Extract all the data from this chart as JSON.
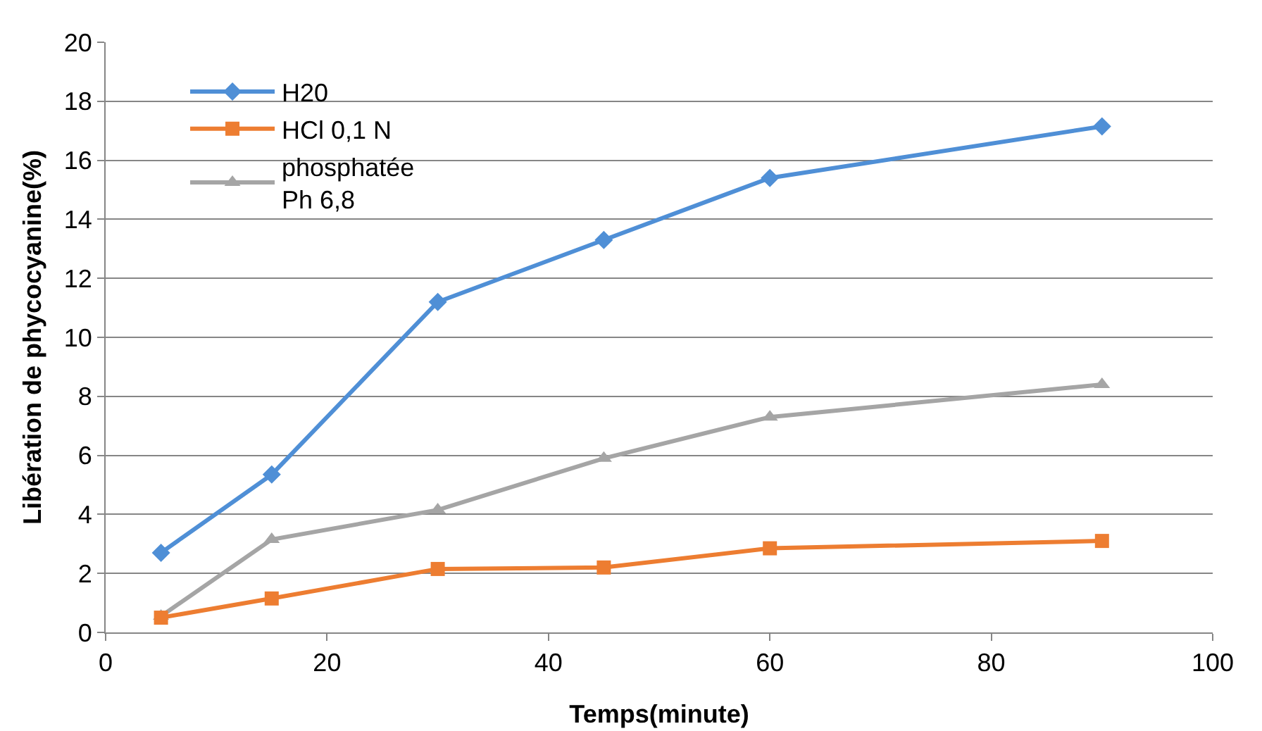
{
  "chart_data": {
    "type": "line",
    "xlabel": "Temps(minute)",
    "ylabel": "Libération de phycocyanine(%)",
    "x": [
      5,
      15,
      30,
      45,
      60,
      90
    ],
    "series": [
      {
        "name": "H20",
        "color": "#4f8fd6",
        "marker": "diamond",
        "values": [
          2.7,
          5.35,
          11.2,
          13.3,
          15.4,
          17.15
        ]
      },
      {
        "name": "HCl 0,1 N",
        "color": "#ed7d31",
        "marker": "square",
        "values": [
          0.5,
          1.15,
          2.15,
          2.2,
          2.85,
          3.1
        ]
      },
      {
        "name": "phosphatée\nPh 6,8",
        "color": "#a5a5a5",
        "marker": "triangle",
        "values": [
          0.55,
          3.15,
          4.15,
          5.9,
          7.3,
          8.4
        ]
      }
    ],
    "xlim": [
      0,
      100
    ],
    "xticks": [
      0,
      20,
      40,
      60,
      80,
      100
    ],
    "ylim": [
      0,
      20
    ],
    "yticks": [
      0,
      2,
      4,
      6,
      8,
      10,
      12,
      14,
      16,
      18,
      20
    ],
    "grid": "y",
    "legend": "top left",
    "line_style": "solid"
  }
}
